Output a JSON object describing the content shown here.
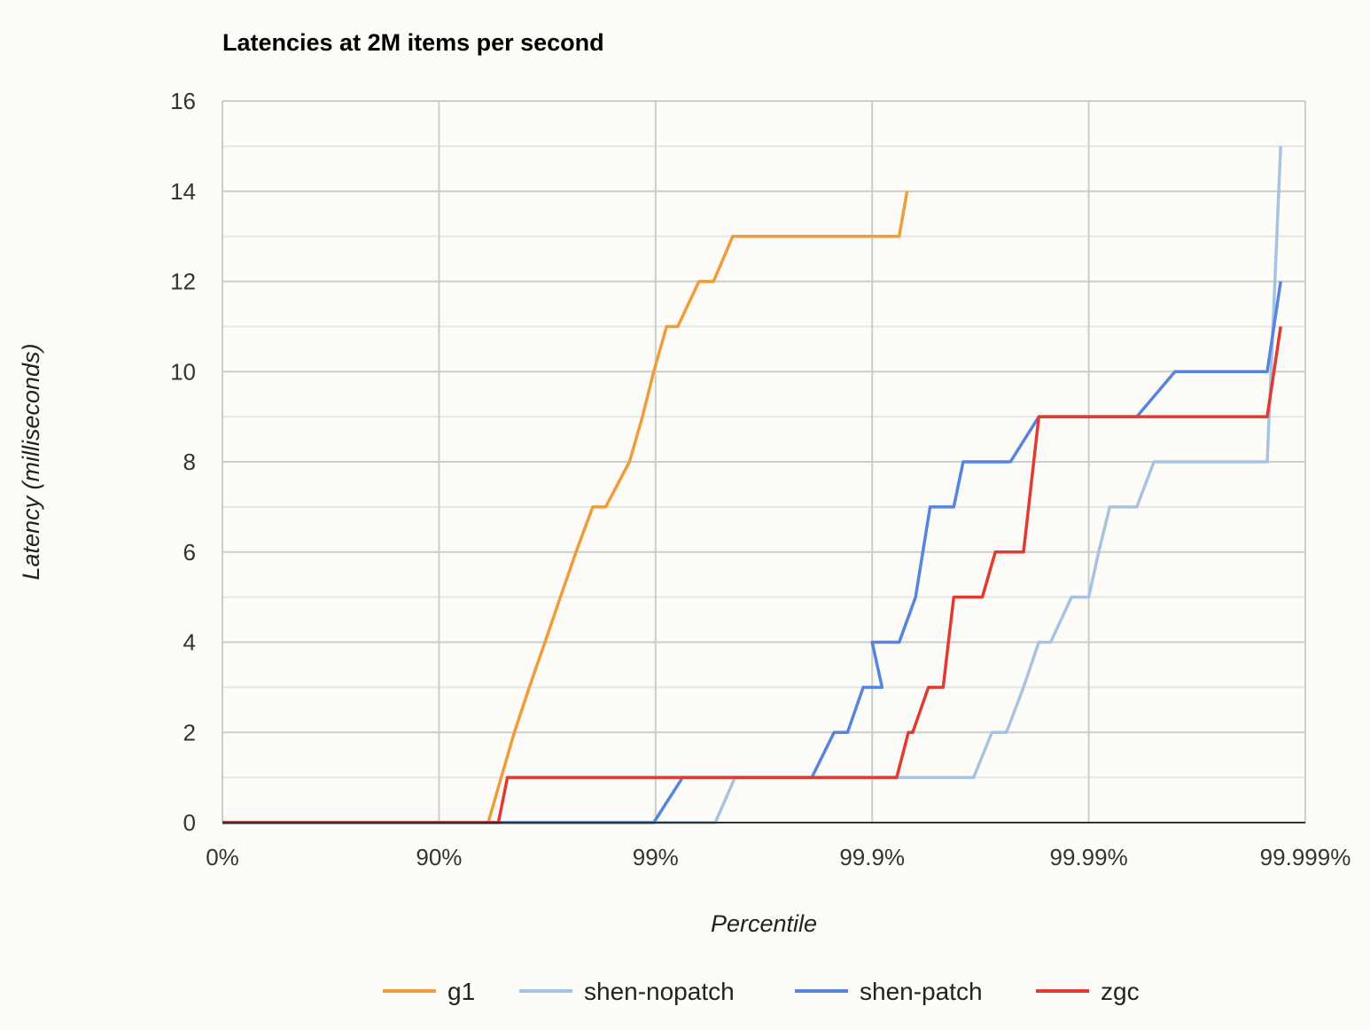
{
  "chart_data": {
    "type": "line",
    "title": "Latencies at 2M items per second",
    "xlabel": "Percentile",
    "ylabel": "Latency (milliseconds)",
    "x_scale": "log-percentile (each major tick = one more nine)",
    "x_ticks": [
      "0%",
      "90%",
      "99%",
      "99.9%",
      "99.99%",
      "99.999%"
    ],
    "ylim": [
      0,
      16
    ],
    "y_ticks": [
      0,
      2,
      4,
      6,
      8,
      10,
      12,
      14,
      16
    ],
    "grid": true,
    "legend_position": "bottom",
    "series": [
      {
        "name": "g1",
        "color": "#f09c38",
        "points": [
          [
            0,
            0
          ],
          [
            0.9407,
            0
          ],
          [
            0.9484,
            1
          ],
          [
            0.9551,
            2
          ],
          [
            0.9617,
            3
          ],
          [
            0.9676,
            4
          ],
          [
            0.9725,
            5
          ],
          [
            0.9767,
            6
          ],
          [
            0.9805,
            7
          ],
          [
            0.983,
            7
          ],
          [
            0.9868,
            8
          ],
          [
            0.9885,
            9
          ],
          [
            0.9898,
            10
          ],
          [
            0.9911,
            11
          ],
          [
            0.9921,
            11
          ],
          [
            0.9937,
            12
          ],
          [
            0.9946,
            12
          ],
          [
            0.9956,
            13
          ],
          [
            0.999,
            13
          ],
          [
            0.99925,
            13
          ],
          [
            0.99931,
            14
          ]
        ]
      },
      {
        "name": "shen-nopatch",
        "color": "#a6c3e2",
        "points": [
          [
            0,
            0
          ],
          [
            0.9947,
            0
          ],
          [
            0.9957,
            1
          ],
          [
            0.99966,
            1
          ],
          [
            0.99972,
            2
          ],
          [
            0.99976,
            2
          ],
          [
            0.9998,
            3
          ],
          [
            0.99983,
            4
          ],
          [
            0.99985,
            4
          ],
          [
            0.99988,
            5
          ],
          [
            0.9999,
            5
          ],
          [
            0.99991,
            6
          ],
          [
            0.99992,
            7
          ],
          [
            0.99994,
            7
          ],
          [
            0.99995,
            8
          ],
          [
            0.999985,
            8
          ],
          [
            0.999987,
            15
          ]
        ]
      },
      {
        "name": "shen-patch",
        "color": "#5585df",
        "points": [
          [
            0,
            0
          ],
          [
            0.9898,
            0
          ],
          [
            0.9925,
            1
          ],
          [
            0.9981,
            1
          ],
          [
            0.9985,
            2
          ],
          [
            0.9987,
            2
          ],
          [
            0.9989,
            3
          ],
          [
            0.9991,
            3
          ],
          [
            0.999,
            4
          ],
          [
            0.99925,
            4
          ],
          [
            0.99937,
            5
          ],
          [
            0.99946,
            7
          ],
          [
            0.99958,
            7
          ],
          [
            0.99962,
            8
          ],
          [
            0.99977,
            8
          ],
          [
            0.99983,
            9
          ],
          [
            0.99994,
            9
          ],
          [
            0.99996,
            10
          ],
          [
            0.999985,
            10
          ],
          [
            0.999987,
            12
          ]
        ]
      },
      {
        "name": "zgc",
        "color": "#e33a2f",
        "points": [
          [
            0,
            0
          ],
          [
            0.9468,
            0
          ],
          [
            0.9517,
            1
          ],
          [
            0.99923,
            1
          ],
          [
            0.99932,
            2
          ],
          [
            0.99935,
            2
          ],
          [
            0.99945,
            3
          ],
          [
            0.99953,
            3
          ],
          [
            0.99958,
            5
          ],
          [
            0.99969,
            5
          ],
          [
            0.99973,
            6
          ],
          [
            0.9998,
            6
          ],
          [
            0.99983,
            9
          ],
          [
            0.999985,
            9
          ],
          [
            0.999987,
            11
          ]
        ]
      }
    ]
  }
}
